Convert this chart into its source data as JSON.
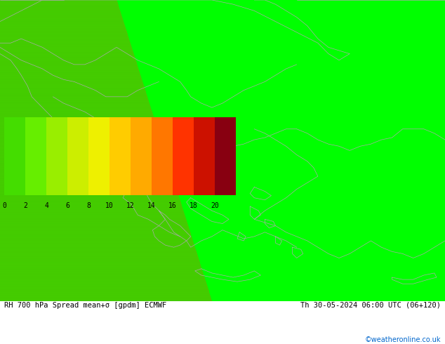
{
  "title": "RH 700 hPa Spread mean+σ [gpdm] ECMWF",
  "date_str": "Th 30-05-2024 06:00 UTC (06+120)",
  "credit": "©weatheronline.co.uk",
  "colorbar_values": [
    0,
    2,
    4,
    6,
    8,
    10,
    12,
    14,
    16,
    18,
    20
  ],
  "colorbar_colors": [
    "#44dd00",
    "#66ee00",
    "#99ee00",
    "#ccee00",
    "#eef000",
    "#ffcc00",
    "#ffaa00",
    "#ff7700",
    "#ff3300",
    "#cc1100",
    "#880011"
  ],
  "bg_color": "#ffffff",
  "color_left": "#44cc00",
  "color_right": "#00ff00",
  "figsize": [
    6.34,
    4.9
  ],
  "dpi": 100,
  "lon_min": 14.0,
  "lon_max": 35.0,
  "lat_min": 34.0,
  "lat_max": 48.0,
  "spread_boundary_lons": [
    19.5,
    21.5,
    23.0,
    23.5,
    23.8,
    24.0
  ],
  "spread_boundary_lats": [
    48.0,
    44.5,
    41.0,
    38.5,
    36.0,
    34.0
  ]
}
